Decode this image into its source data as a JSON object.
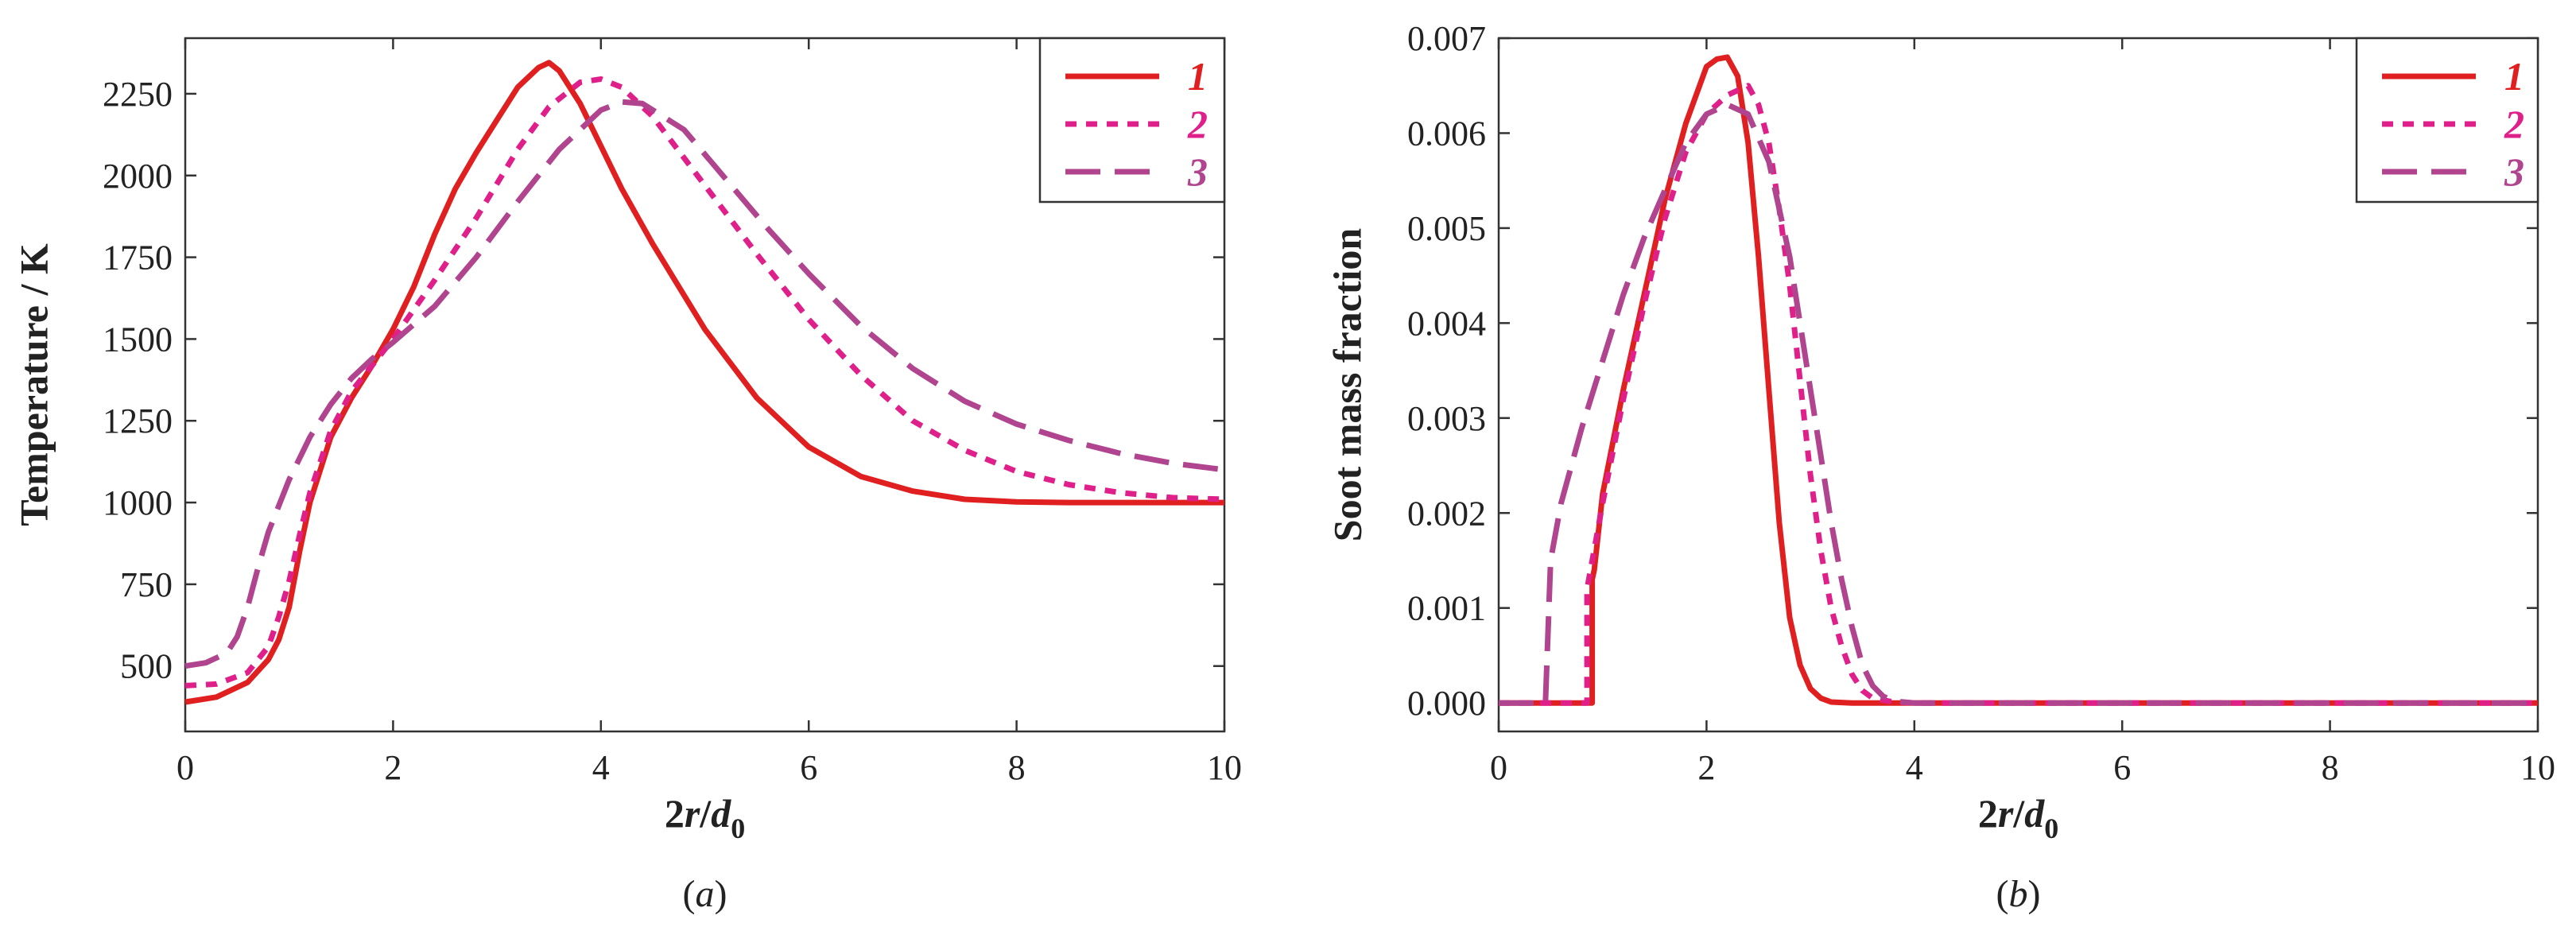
{
  "chart_data": [
    {
      "type": "line",
      "xlabel_main": "2r/d",
      "xlabel_sub": "0",
      "ylabel": "Temperature / K",
      "panel_label": "(a)",
      "xlim": [
        0,
        10
      ],
      "ylim": [
        300,
        2420
      ],
      "xticks": [
        0,
        2,
        4,
        6,
        8,
        10
      ],
      "yticks": [
        500,
        750,
        1000,
        1250,
        1500,
        1750,
        2000,
        2250
      ],
      "legend_position": "top-right",
      "series": [
        {
          "name": "1",
          "color": "#e02020",
          "dash": "solid",
          "x": [
            0,
            0.3,
            0.6,
            0.8,
            0.9,
            1.0,
            1.1,
            1.2,
            1.4,
            1.6,
            1.8,
            2.0,
            2.2,
            2.4,
            2.6,
            2.8,
            3.0,
            3.2,
            3.4,
            3.5,
            3.6,
            3.8,
            4.0,
            4.2,
            4.5,
            5.0,
            5.5,
            6.0,
            6.5,
            7.0,
            7.5,
            8.0,
            8.5,
            9.0,
            9.5,
            10.0
          ],
          "y": [
            390,
            405,
            450,
            520,
            580,
            680,
            850,
            1000,
            1200,
            1320,
            1420,
            1530,
            1660,
            1820,
            1960,
            2070,
            2170,
            2270,
            2330,
            2345,
            2320,
            2220,
            2090,
            1960,
            1790,
            1530,
            1320,
            1170,
            1080,
            1035,
            1010,
            1002,
            1000,
            1000,
            1000,
            1000
          ]
        },
        {
          "name": "2",
          "color": "#e0208a",
          "dash": "dotted",
          "x": [
            0,
            0.3,
            0.6,
            0.8,
            0.9,
            1.0,
            1.1,
            1.2,
            1.4,
            1.6,
            1.8,
            2.0,
            2.4,
            2.8,
            3.2,
            3.5,
            3.8,
            4.0,
            4.2,
            4.5,
            5.0,
            5.5,
            6.0,
            6.5,
            7.0,
            7.5,
            8.0,
            8.5,
            9.0,
            9.5,
            10.0
          ],
          "y": [
            440,
            445,
            480,
            560,
            650,
            760,
            900,
            1030,
            1220,
            1340,
            1420,
            1500,
            1680,
            1870,
            2080,
            2210,
            2285,
            2295,
            2270,
            2180,
            1970,
            1760,
            1560,
            1390,
            1250,
            1160,
            1095,
            1055,
            1030,
            1015,
            1010
          ]
        },
        {
          "name": "3",
          "color": "#b0448e",
          "dash": "dashed",
          "x": [
            0,
            0.2,
            0.4,
            0.5,
            0.6,
            0.7,
            0.8,
            1.0,
            1.2,
            1.4,
            1.6,
            1.8,
            2.0,
            2.4,
            2.8,
            3.2,
            3.6,
            4.0,
            4.2,
            4.4,
            4.8,
            5.2,
            5.6,
            6.0,
            6.5,
            7.0,
            7.5,
            8.0,
            8.5,
            9.0,
            9.5,
            10.0
          ],
          "y": [
            500,
            510,
            540,
            590,
            680,
            800,
            910,
            1070,
            1200,
            1300,
            1380,
            1440,
            1490,
            1600,
            1750,
            1920,
            2080,
            2200,
            2225,
            2220,
            2140,
            1990,
            1840,
            1700,
            1540,
            1410,
            1310,
            1240,
            1190,
            1150,
            1120,
            1100
          ]
        }
      ]
    },
    {
      "type": "line",
      "xlabel_main": "2r/d",
      "xlabel_sub": "0",
      "ylabel": "Soot mass fraction",
      "panel_label": "(b)",
      "xlim": [
        0,
        10
      ],
      "ylim": [
        -0.0003,
        0.007
      ],
      "xticks": [
        0,
        2,
        4,
        6,
        8,
        10
      ],
      "ytick_labels": [
        "0.000",
        "0.001",
        "0.002",
        "0.003",
        "0.004",
        "0.005",
        "0.006",
        "0.007"
      ],
      "yticks": [
        0,
        0.001,
        0.002,
        0.003,
        0.004,
        0.005,
        0.006,
        0.007
      ],
      "legend_position": "top-right",
      "series": [
        {
          "name": "1",
          "color": "#e02020",
          "dash": "solid",
          "x": [
            0,
            0.9,
            0.9,
            0.92,
            1.0,
            1.2,
            1.4,
            1.6,
            1.8,
            2.0,
            2.1,
            2.2,
            2.3,
            2.4,
            2.5,
            2.6,
            2.7,
            2.8,
            2.9,
            3.0,
            3.1,
            3.2,
            3.4,
            3.6,
            4.0,
            10.0
          ],
          "y": [
            0,
            0,
            0.0013,
            0.0014,
            0.0022,
            0.0033,
            0.0043,
            0.0053,
            0.0061,
            0.0067,
            0.00678,
            0.0068,
            0.0066,
            0.0059,
            0.0047,
            0.0033,
            0.0019,
            0.0009,
            0.0004,
            0.00015,
            5e-05,
            1e-05,
            0,
            0,
            0,
            0
          ]
        },
        {
          "name": "2",
          "color": "#e0208a",
          "dash": "dotted",
          "x": [
            0,
            0.85,
            0.85,
            1.0,
            1.2,
            1.4,
            1.6,
            1.8,
            2.0,
            2.2,
            2.4,
            2.5,
            2.6,
            2.7,
            2.8,
            2.9,
            3.0,
            3.1,
            3.2,
            3.3,
            3.4,
            3.5,
            3.6,
            3.8,
            4.0,
            10.0
          ],
          "y": [
            0,
            0,
            0.0012,
            0.0021,
            0.0032,
            0.0042,
            0.0051,
            0.0058,
            0.0062,
            0.0064,
            0.0065,
            0.0063,
            0.0059,
            0.0052,
            0.0044,
            0.0034,
            0.0024,
            0.0016,
            0.001,
            0.0006,
            0.0003,
            0.00013,
            5e-05,
            1e-05,
            0,
            0
          ]
        },
        {
          "name": "3",
          "color": "#b0448e",
          "dash": "dashed",
          "x": [
            0,
            0.45,
            0.5,
            0.6,
            0.8,
            1.0,
            1.2,
            1.4,
            1.6,
            1.8,
            2.0,
            2.2,
            2.4,
            2.6,
            2.8,
            3.0,
            3.1,
            3.2,
            3.3,
            3.4,
            3.5,
            3.6,
            3.7,
            3.8,
            4.0,
            10.0
          ],
          "y": [
            0,
            0,
            0.0015,
            0.0021,
            0.0029,
            0.0036,
            0.0043,
            0.0049,
            0.0054,
            0.0059,
            0.0062,
            0.0063,
            0.0062,
            0.0057,
            0.0047,
            0.0033,
            0.0026,
            0.0019,
            0.0013,
            0.0008,
            0.0004,
            0.00018,
            7e-05,
            2e-05,
            0,
            0
          ]
        }
      ]
    }
  ]
}
